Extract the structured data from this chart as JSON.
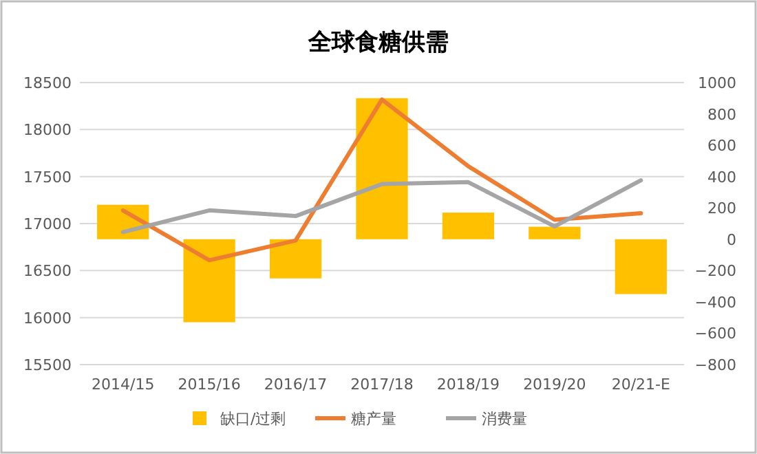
{
  "chart_data": {
    "type": "bar",
    "title": "全球食糖供需",
    "categories": [
      "2014/15",
      "2015/16",
      "2016/17",
      "2017/18",
      "2018/19",
      "2019/20",
      "20/21-E"
    ],
    "series": [
      {
        "name": "缺口/过剩",
        "axis": "y2",
        "color": "#ffc000",
        "values": [
          220,
          -530,
          -250,
          900,
          170,
          80,
          -350
        ]
      },
      {
        "name": "糖产量",
        "type": "line",
        "color": "#ed7d31",
        "values": [
          17140,
          16610,
          16820,
          18320,
          17610,
          17040,
          17110
        ]
      },
      {
        "name": "消费量",
        "type": "line",
        "color": "#a5a5a5",
        "values": [
          16910,
          17140,
          17080,
          17420,
          17440,
          16970,
          17460
        ]
      }
    ],
    "ylim": [
      15500,
      18500
    ],
    "yticks": [
      15500,
      16000,
      16500,
      17000,
      17500,
      18000,
      18500
    ],
    "y2lim": [
      -800,
      1000
    ],
    "y2ticks": [
      -800,
      -600,
      -400,
      -200,
      0,
      200,
      400,
      600,
      800,
      1000
    ],
    "grid": "y",
    "legend": "bottom"
  }
}
